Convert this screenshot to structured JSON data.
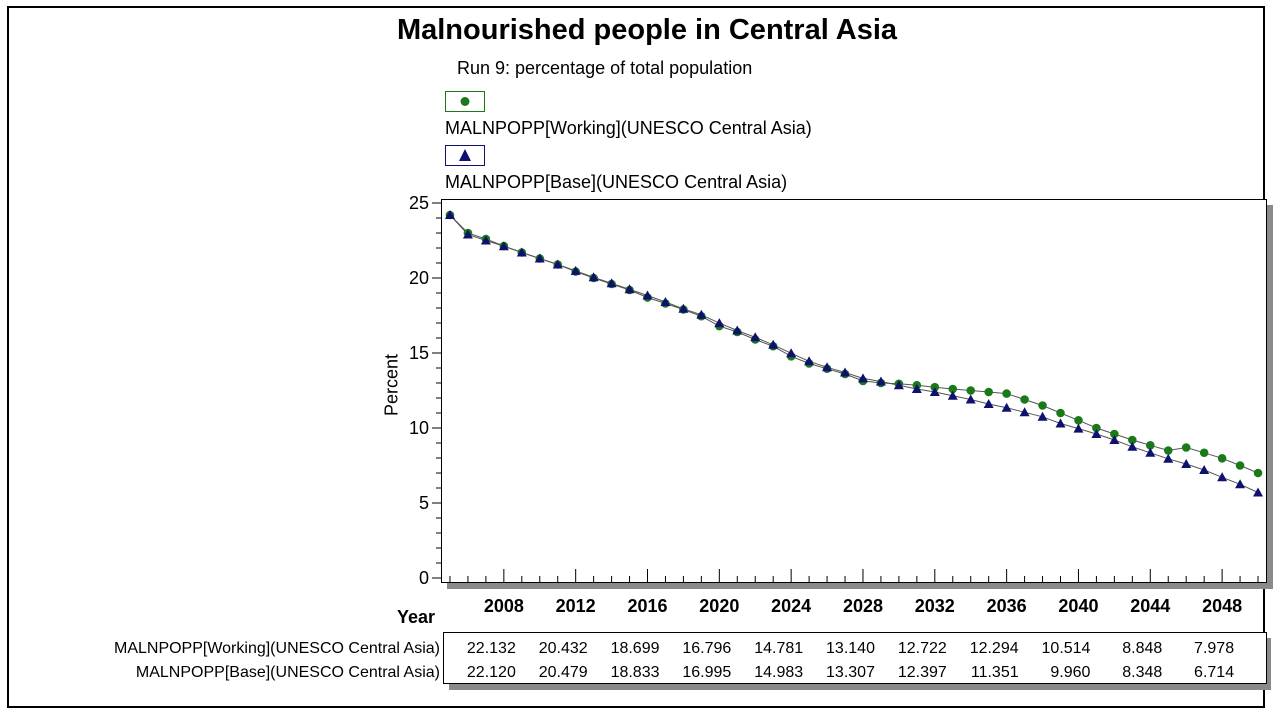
{
  "chart_data": {
    "type": "line",
    "title": "Malnourished people in Central Asia",
    "subtitle": "Run 9: percentage of total population",
    "xlabel": "Year",
    "ylabel": "Percent",
    "xlim": [
      2004.5,
      2050.5
    ],
    "ylim": [
      0,
      25
    ],
    "yticks": [
      0,
      5,
      10,
      15,
      20,
      25
    ],
    "xticks": [
      2008,
      2012,
      2016,
      2020,
      2024,
      2028,
      2032,
      2036,
      2040,
      2044,
      2048
    ],
    "legend_position": "top",
    "series": [
      {
        "name": "MALNPOPP[Working](UNESCO Central Asia)",
        "color": "#1a7a1a",
        "marker": "circle",
        "x": [
          2005,
          2006,
          2007,
          2008,
          2009,
          2010,
          2011,
          2012,
          2013,
          2014,
          2015,
          2016,
          2017,
          2018,
          2019,
          2020,
          2021,
          2022,
          2023,
          2024,
          2025,
          2026,
          2027,
          2028,
          2029,
          2030,
          2031,
          2032,
          2033,
          2034,
          2035,
          2036,
          2037,
          2038,
          2039,
          2040,
          2041,
          2042,
          2043,
          2044,
          2045,
          2046,
          2047,
          2048,
          2049,
          2050
        ],
        "y": [
          24.2,
          23.0,
          22.6,
          22.132,
          21.7,
          21.3,
          20.9,
          20.432,
          20.0,
          19.6,
          19.2,
          18.699,
          18.3,
          17.9,
          17.45,
          16.796,
          16.4,
          15.9,
          15.45,
          14.781,
          14.3,
          13.95,
          13.6,
          13.14,
          13.0,
          12.95,
          12.85,
          12.722,
          12.6,
          12.5,
          12.4,
          12.294,
          11.9,
          11.5,
          11.0,
          10.514,
          10.0,
          9.6,
          9.2,
          8.848,
          8.5,
          8.7,
          8.35,
          7.978,
          7.5,
          7.0
        ]
      },
      {
        "name": "MALNPOPP[Base](UNESCO Central Asia)",
        "color": "#10106e",
        "marker": "triangle",
        "x": [
          2005,
          2006,
          2007,
          2008,
          2009,
          2010,
          2011,
          2012,
          2013,
          2014,
          2015,
          2016,
          2017,
          2018,
          2019,
          2020,
          2021,
          2022,
          2023,
          2024,
          2025,
          2026,
          2027,
          2028,
          2029,
          2030,
          2031,
          2032,
          2033,
          2034,
          2035,
          2036,
          2037,
          2038,
          2039,
          2040,
          2041,
          2042,
          2043,
          2044,
          2045,
          2046,
          2047,
          2048,
          2049,
          2050
        ],
        "y": [
          24.2,
          22.9,
          22.5,
          22.12,
          21.7,
          21.3,
          20.9,
          20.479,
          20.05,
          19.65,
          19.25,
          18.833,
          18.4,
          17.95,
          17.55,
          16.995,
          16.5,
          16.05,
          15.55,
          14.983,
          14.45,
          14.05,
          13.7,
          13.307,
          13.1,
          12.85,
          12.6,
          12.397,
          12.15,
          11.9,
          11.6,
          11.351,
          11.05,
          10.75,
          10.3,
          9.96,
          9.6,
          9.2,
          8.75,
          8.348,
          7.95,
          7.6,
          7.2,
          6.714,
          6.25,
          5.7
        ]
      }
    ],
    "table": {
      "years": [
        "2008",
        "2012",
        "2016",
        "2020",
        "2024",
        "2028",
        "2032",
        "2036",
        "2040",
        "2044",
        "2048"
      ],
      "rows": [
        {
          "label": "MALNPOPP[Working](UNESCO Central Asia)",
          "values": [
            "22.132",
            "20.432",
            "18.699",
            "16.796",
            "14.781",
            "13.140",
            "12.722",
            "12.294",
            "10.514",
            "8.848",
            "7.978"
          ]
        },
        {
          "label": "MALNPOPP[Base](UNESCO Central Asia)",
          "values": [
            "22.120",
            "20.479",
            "18.833",
            "16.995",
            "14.983",
            "13.307",
            "12.397",
            "11.351",
            "9.960",
            "8.348",
            "6.714"
          ]
        }
      ]
    }
  }
}
